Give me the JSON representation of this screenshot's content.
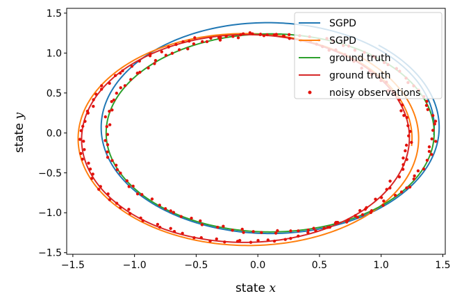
{
  "chart_data": {
    "type": "line",
    "title": "",
    "xlabel": "state x",
    "xlabel_prefix": "state",
    "xlabel_var": "x",
    "ylabel": "state y",
    "ylabel_prefix": "state",
    "ylabel_var": "y",
    "xlim": [
      -1.55,
      1.52
    ],
    "ylim": [
      -1.52,
      1.56
    ],
    "xticks": [
      -1.5,
      -1.0,
      -0.5,
      0.0,
      0.5,
      1.0,
      1.5
    ],
    "xtick_labels": [
      "−1.5",
      "−1.0",
      "−0.5",
      "0.0",
      "0.5",
      "1.0",
      "1.5"
    ],
    "yticks": [
      -1.5,
      -1.0,
      -0.5,
      0.0,
      0.5,
      1.0,
      1.5
    ],
    "ytick_labels": [
      "−1.5",
      "−1.0",
      "−0.5",
      "0.0",
      "0.5",
      "1.0",
      "1.5"
    ],
    "legend_position": "top-right",
    "colors": {
      "sgpd_1": "#1f77b4",
      "sgpd_2": "#ff7f0e",
      "truth_1": "#2ca02c",
      "truth_2": "#d62728",
      "observations": "#e3120b"
    },
    "series": [
      {
        "name": "SGPD",
        "color_key": "sgpd_1",
        "kind": "line",
        "trajectory": {
          "cx": 0.09,
          "cy": 0.07,
          "rx": 1.34,
          "ry": 1.3,
          "rot_deg": -4,
          "laps": 1.15,
          "spread": 0.03
        }
      },
      {
        "name": "SGPD",
        "color_key": "sgpd_2",
        "kind": "line",
        "trajectory": {
          "cx": -0.09,
          "cy": -0.07,
          "rx": 1.34,
          "ry": 1.3,
          "rot_deg": -4,
          "laps": 1.15,
          "spread": 0.04
        }
      },
      {
        "name": "ground truth",
        "color_key": "truth_1",
        "kind": "line",
        "trajectory": {
          "cx": 0.1,
          "cy": 0.0,
          "rx": 1.33,
          "ry": 1.24,
          "rot_deg": 0,
          "laps": 1.0,
          "spread": 0.0
        }
      },
      {
        "name": "ground truth",
        "color_key": "truth_2",
        "kind": "line",
        "trajectory": {
          "cx": -0.1,
          "cy": -0.07,
          "rx": 1.33,
          "ry": 1.3,
          "rot_deg": 10,
          "laps": 1.0,
          "spread": 0.0
        }
      },
      {
        "name": "noisy observations",
        "color_key": "observations",
        "kind": "scatter",
        "trajectory": {
          "sources": [
            2,
            3
          ],
          "points_per_orbit": 120,
          "noise": 0.025
        }
      }
    ]
  }
}
